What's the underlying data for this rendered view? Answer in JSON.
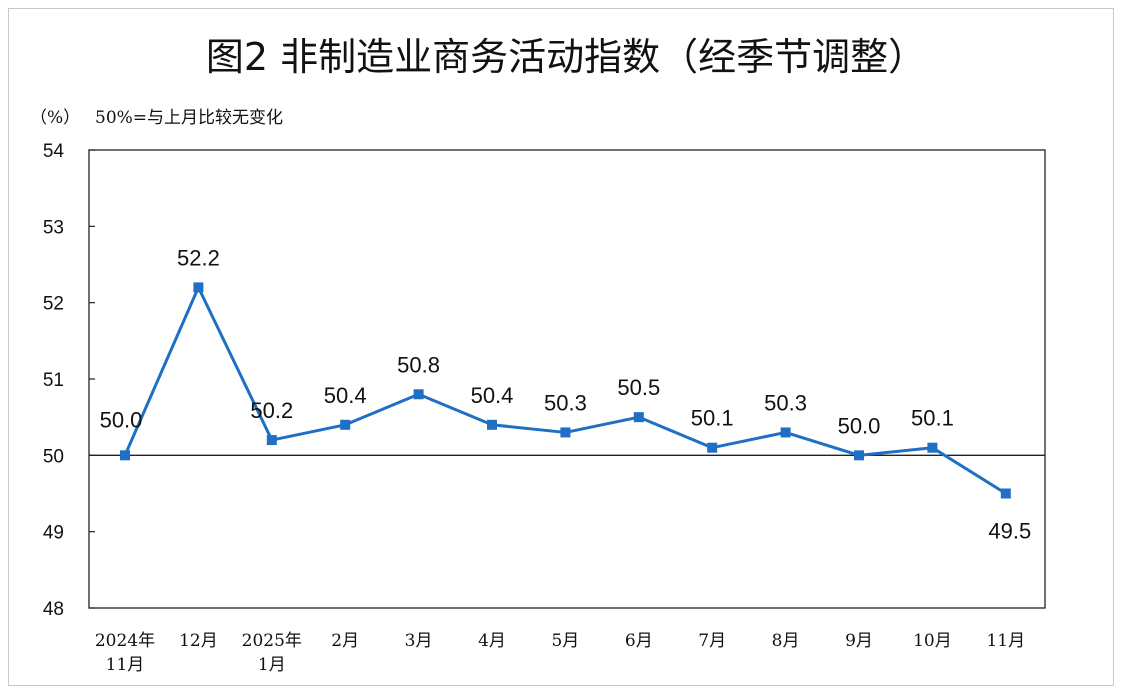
{
  "chart_data": {
    "type": "line",
    "title": "图2  非制造业商务活动指数（经季节调整）",
    "unit_label": "（%）",
    "note": "50%=与上月比较无变化",
    "categories": [
      [
        "2024年",
        "11月"
      ],
      [
        "12月"
      ],
      [
        "2025年",
        "1月"
      ],
      [
        "2月"
      ],
      [
        "3月"
      ],
      [
        "4月"
      ],
      [
        "5月"
      ],
      [
        "6月"
      ],
      [
        "7月"
      ],
      [
        "8月"
      ],
      [
        "9月"
      ],
      [
        "10月"
      ],
      [
        "11月"
      ]
    ],
    "values": [
      50.0,
      52.2,
      50.2,
      50.4,
      50.8,
      50.4,
      50.3,
      50.5,
      50.1,
      50.3,
      50.0,
      50.1,
      49.5
    ],
    "data_labels": [
      "50.0",
      "52.2",
      "50.2",
      "50.4",
      "50.8",
      "50.4",
      "50.3",
      "50.5",
      "50.1",
      "50.3",
      "50.0",
      "50.1",
      "49.5"
    ],
    "ylim": [
      48,
      54
    ],
    "yticks": [
      "48",
      "49",
      "50",
      "51",
      "52",
      "53",
      "54"
    ],
    "reference_line": 50,
    "series_color": "#1f6fc5",
    "marker": "square",
    "grid": false
  }
}
